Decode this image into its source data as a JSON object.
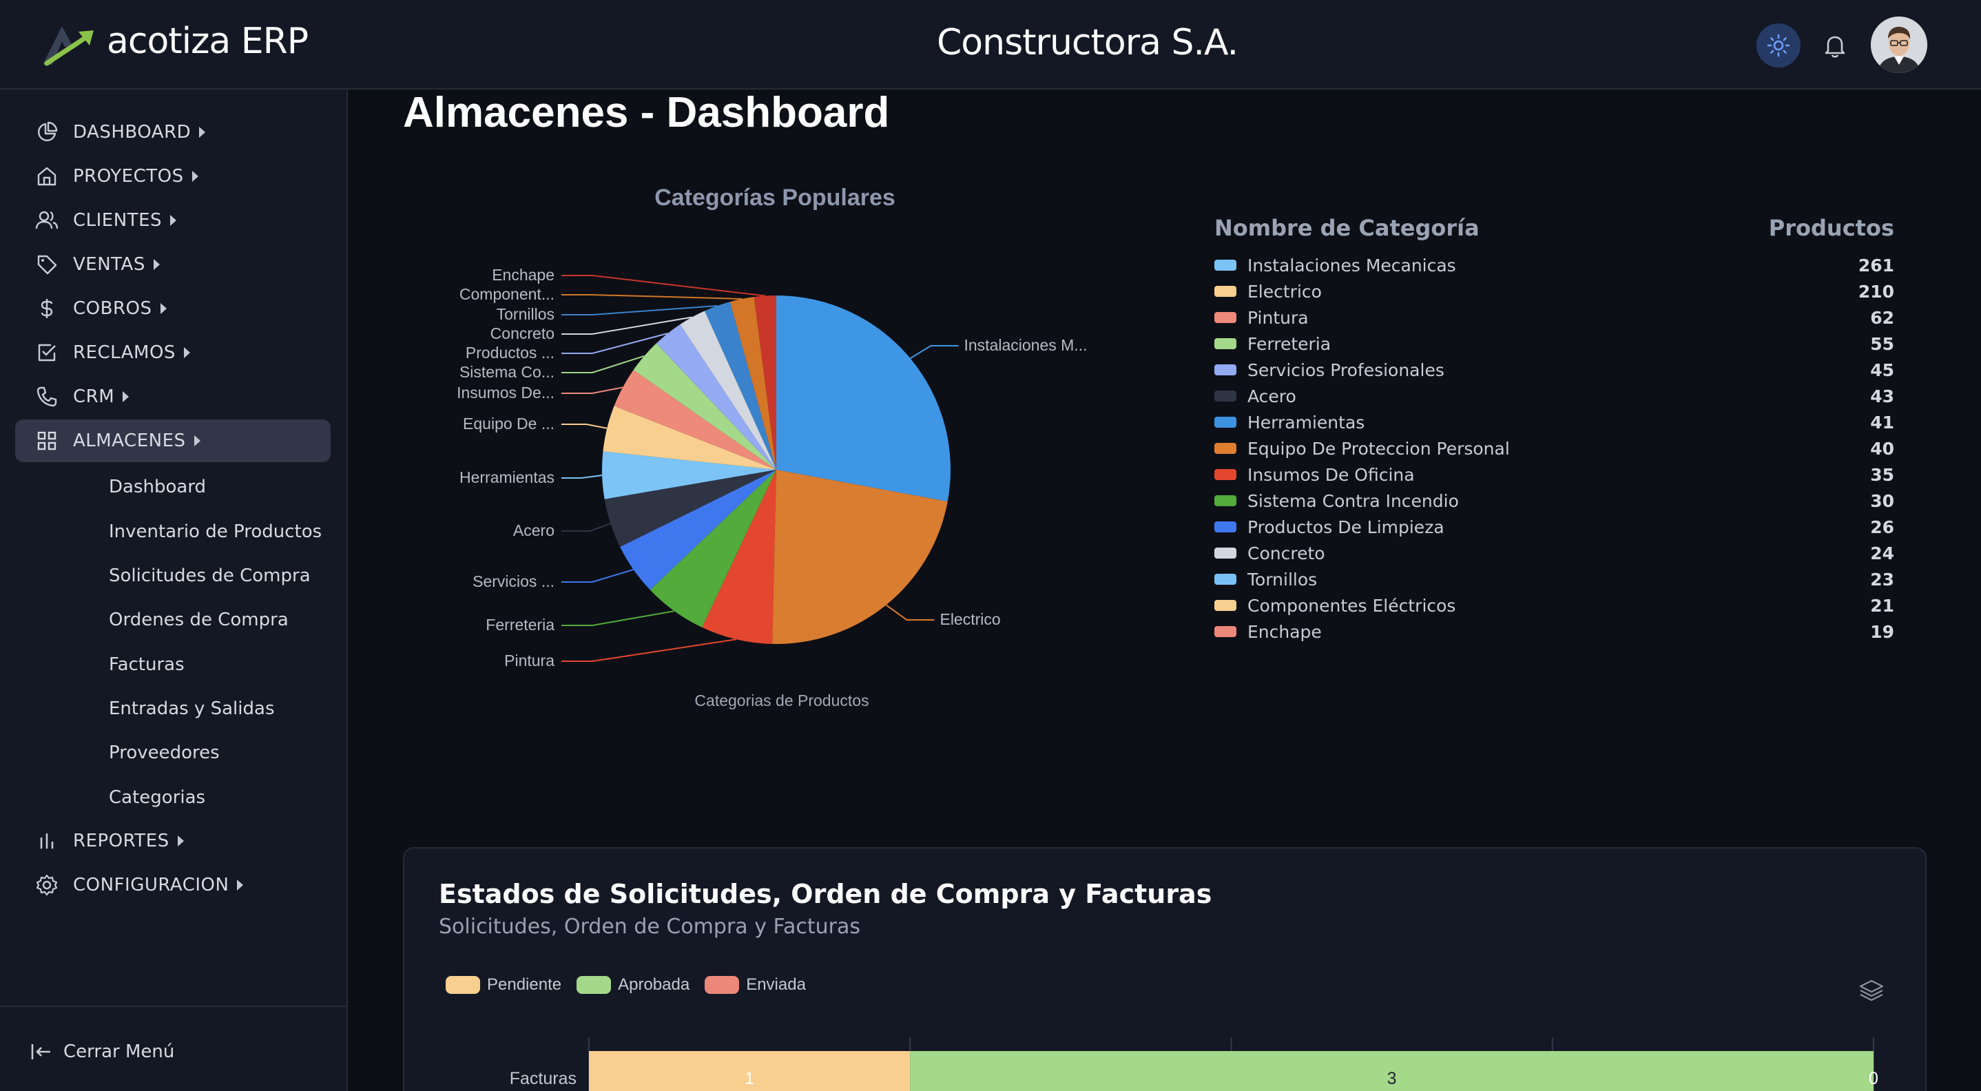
{
  "header": {
    "app_name": "acotiza ERP",
    "company": "Constructora S.A.",
    "icons": [
      "logo-icon",
      "sun-icon",
      "bell-icon",
      "avatar"
    ]
  },
  "sidebar": {
    "items": [
      {
        "label": "DASHBOARD",
        "icon": "pie-chart-icon"
      },
      {
        "label": "PROYECTOS",
        "icon": "home-icon"
      },
      {
        "label": "CLIENTES",
        "icon": "users-icon"
      },
      {
        "label": "VENTAS",
        "icon": "tag-icon"
      },
      {
        "label": "COBROS",
        "icon": "dollar-icon"
      },
      {
        "label": "RECLAMOS",
        "icon": "checkbox-icon"
      },
      {
        "label": "CRM",
        "icon": "phone-icon"
      },
      {
        "label": "ALMACENES",
        "icon": "grid-icon",
        "active": true
      },
      {
        "label": "REPORTES",
        "icon": "bar-chart-icon"
      },
      {
        "label": "CONFIGURACION",
        "icon": "gear-icon"
      }
    ],
    "sub_items": [
      "Dashboard",
      "Inventario de Productos",
      "Solicitudes de Compra",
      "Ordenes de Compra",
      "Facturas",
      "Entradas y Salidas",
      "Proveedores",
      "Categorias"
    ],
    "close_label": "Cerrar Menú"
  },
  "main": {
    "title": "Almacenes - Dashboard"
  },
  "pie": {
    "callouts": [
      "Instalaciones M...",
      "Electrico",
      "Pintura",
      "Ferreteria",
      "Servicios ...",
      "Acero",
      "Herramientas",
      "Equipo De ...",
      "Insumos De...",
      "Sistema Co...",
      "Productos ...",
      "Concreto",
      "Tornillos",
      "Component...",
      "Enchape"
    ]
  },
  "table": {
    "head_name": "Nombre de Categoría",
    "head_value": "Productos",
    "rows": [
      {
        "name": "Instalaciones Mecanicas",
        "value": "261",
        "color": "#7cc4f6"
      },
      {
        "name": "Electrico",
        "value": "210",
        "color": "#f8cf8f"
      },
      {
        "name": "Pintura",
        "value": "62",
        "color": "#ee8a7a"
      },
      {
        "name": "Ferreteria",
        "value": "55",
        "color": "#a4d98a"
      },
      {
        "name": "Servicios Profesionales",
        "value": "45",
        "color": "#94aaf3"
      },
      {
        "name": "Acero",
        "value": "43",
        "color": "#2f3444"
      },
      {
        "name": "Herramientas",
        "value": "41",
        "color": "#3d93e0"
      },
      {
        "name": "Equipo De Proteccion Personal",
        "value": "40",
        "color": "#e17f30"
      },
      {
        "name": "Insumos De Oficina",
        "value": "35",
        "color": "#e4472f"
      },
      {
        "name": "Sistema Contra Incendio",
        "value": "30",
        "color": "#52ab3a"
      },
      {
        "name": "Productos De Limpieza",
        "value": "26",
        "color": "#3f77ee"
      },
      {
        "name": "Concreto",
        "value": "24",
        "color": "#d3d7df"
      },
      {
        "name": "Tornillos",
        "value": "23",
        "color": "#79c1f5"
      },
      {
        "name": "Componentes Eléctricos",
        "value": "21",
        "color": "#f7cf8e"
      },
      {
        "name": "Enchape",
        "value": "19",
        "color": "#ec8879"
      }
    ]
  },
  "chart_data": [
    {
      "type": "pie",
      "title": "Categorías Populares",
      "xlabel": "Categorias de Productos",
      "categories": [
        "Instalaciones Mecanicas",
        "Electrico",
        "Pintura",
        "Ferreteria",
        "Servicios Profesionales",
        "Acero",
        "Herramientas",
        "Equipo De Proteccion Personal",
        "Insumos De Oficina",
        "Sistema Contra Incendio",
        "Productos De Limpieza",
        "Concreto",
        "Tornillos",
        "Componentes Eléctricos",
        "Enchape"
      ],
      "values": [
        261,
        210,
        62,
        55,
        45,
        43,
        41,
        40,
        35,
        30,
        26,
        24,
        23,
        21,
        19
      ],
      "colors": [
        "#3f96e4",
        "#d97d30",
        "#e4472f",
        "#52ab3a",
        "#3f77ee",
        "#2f3444",
        "#7cc4f6",
        "#f8cf8f",
        "#ee8a7a",
        "#a4d98a",
        "#94aaf3",
        "#d3d7df",
        "#3a83cc",
        "#d37628",
        "#c9372a"
      ]
    },
    {
      "type": "bar",
      "title": "Estados de Solicitudes, Orden de Compra y Facturas",
      "subtitle": "Solicitudes, Orden de Compra y Facturas",
      "categories": [
        "Facturas"
      ],
      "series": [
        {
          "name": "Pendiente",
          "values": [
            1
          ],
          "color": "#f8cf8f"
        },
        {
          "name": "Aprobada",
          "values": [
            3
          ],
          "color": "#a4d98a"
        },
        {
          "name": "Enviada",
          "values": [
            0
          ],
          "color": "#ec8879"
        }
      ]
    }
  ]
}
